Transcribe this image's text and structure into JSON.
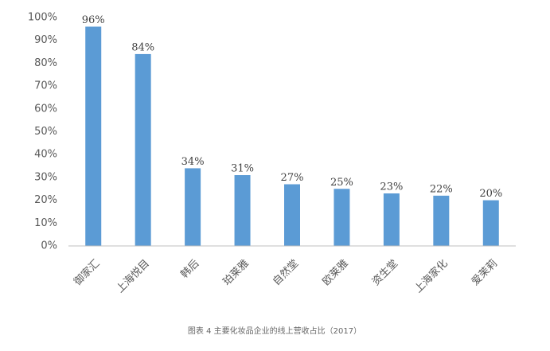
{
  "chart_data": {
    "type": "bar",
    "title": "图表 4 主要化妆品企业的线上营收占比（2017）",
    "categories": [
      "御家汇",
      "上海悦目",
      "韩后",
      "珀莱雅",
      "自然堂",
      "欧莱雅",
      "资生堂",
      "上海家化",
      "爱茉莉"
    ],
    "values": [
      96,
      84,
      34,
      31,
      27,
      25,
      23,
      22,
      20
    ],
    "value_labels": [
      "96%",
      "84%",
      "34%",
      "31%",
      "27%",
      "25%",
      "23%",
      "22%",
      "20%"
    ],
    "color": "#5b9bd5",
    "ylim": [
      0,
      100
    ],
    "yticks": [
      {
        "value": 0,
        "label": "0%"
      },
      {
        "value": 10,
        "label": "10%"
      },
      {
        "value": 20,
        "label": "20%"
      },
      {
        "value": 30,
        "label": "30%"
      },
      {
        "value": 40,
        "label": "40%"
      },
      {
        "value": 50,
        "label": "50%"
      },
      {
        "value": 60,
        "label": "60%"
      },
      {
        "value": 70,
        "label": "70%"
      },
      {
        "value": 80,
        "label": "80%"
      },
      {
        "value": 90,
        "label": "90%"
      },
      {
        "value": 100,
        "label": "100%"
      }
    ],
    "grid": false
  }
}
